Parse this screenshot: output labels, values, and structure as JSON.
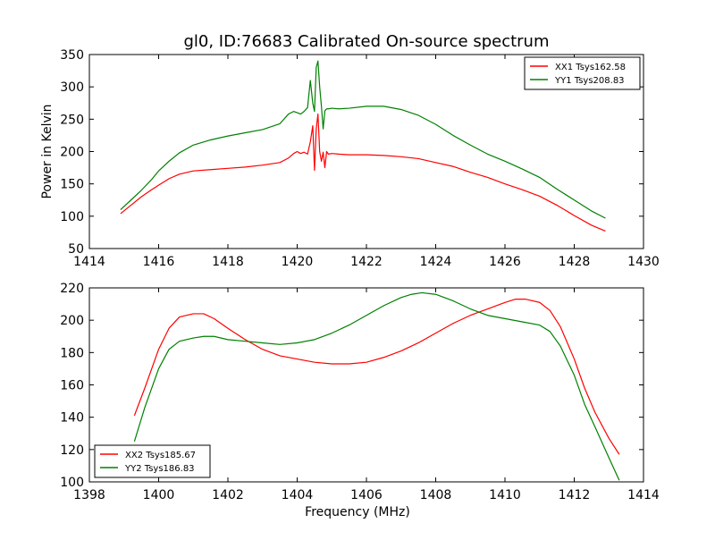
{
  "figure": {
    "title": "gl0, ID:76683 Calibrated On-source spectrum"
  },
  "colors": {
    "red": "#ff0000",
    "green": "#008000",
    "axes": "#000000",
    "background": "#ffffff"
  },
  "chart_data": [
    {
      "type": "line",
      "title": "gl0, ID:76683 Calibrated On-source spectrum",
      "xlabel": "",
      "ylabel": "Power in Kelvin",
      "xlim": [
        1414,
        1430
      ],
      "ylim": [
        50,
        350
      ],
      "xticks": [
        "1414",
        "1416",
        "1418",
        "1420",
        "1422",
        "1424",
        "1426",
        "1428",
        "1430"
      ],
      "yticks": [
        "50",
        "100",
        "150",
        "200",
        "250",
        "300",
        "350"
      ],
      "grid": false,
      "legend_position": "top-right",
      "series": [
        {
          "name": "XX1 Tsys162.58",
          "color": "#ff0000",
          "x": [
            1414.9,
            1415.2,
            1415.5,
            1415.8,
            1416.0,
            1416.3,
            1416.6,
            1417.0,
            1417.5,
            1418.0,
            1418.5,
            1419.0,
            1419.5,
            1419.75,
            1419.9,
            1420.0,
            1420.1,
            1420.2,
            1420.3,
            1420.38,
            1420.45,
            1420.5,
            1420.55,
            1420.6,
            1420.65,
            1420.7,
            1420.75,
            1420.8,
            1420.85,
            1420.9,
            1421.0,
            1421.2,
            1421.5,
            1422.0,
            1422.5,
            1423.0,
            1423.5,
            1424.0,
            1424.5,
            1425.0,
            1425.5,
            1426.0,
            1426.5,
            1427.0,
            1427.5,
            1428.0,
            1428.5,
            1428.9
          ],
          "y": [
            104,
            117,
            130,
            141,
            148,
            158,
            165,
            170,
            172,
            174,
            176,
            179,
            183,
            190,
            197,
            200,
            197,
            199,
            196,
            215,
            240,
            171,
            235,
            258,
            200,
            185,
            199,
            175,
            200,
            196,
            197,
            196,
            195,
            195,
            194,
            192,
            189,
            183,
            177,
            168,
            160,
            150,
            141,
            131,
            117,
            101,
            86,
            77
          ]
        },
        {
          "name": "YY1 Tsys208.83",
          "color": "#008000",
          "x": [
            1414.9,
            1415.2,
            1415.5,
            1415.8,
            1416.0,
            1416.3,
            1416.6,
            1417.0,
            1417.5,
            1418.0,
            1418.5,
            1419.0,
            1419.5,
            1419.75,
            1419.9,
            1420.0,
            1420.1,
            1420.2,
            1420.3,
            1420.38,
            1420.45,
            1420.5,
            1420.55,
            1420.6,
            1420.65,
            1420.7,
            1420.75,
            1420.8,
            1420.85,
            1420.9,
            1421.0,
            1421.2,
            1421.5,
            1422.0,
            1422.5,
            1423.0,
            1423.5,
            1424.0,
            1424.5,
            1425.0,
            1425.5,
            1426.0,
            1426.5,
            1427.0,
            1427.5,
            1428.0,
            1428.5,
            1428.9
          ],
          "y": [
            110,
            125,
            140,
            157,
            170,
            185,
            198,
            210,
            218,
            224,
            229,
            234,
            243,
            258,
            262,
            260,
            258,
            262,
            268,
            310,
            275,
            262,
            330,
            340,
            300,
            270,
            235,
            263,
            266,
            266,
            267,
            266,
            267,
            270,
            270,
            265,
            256,
            242,
            225,
            210,
            196,
            185,
            173,
            160,
            142,
            125,
            108,
            97
          ]
        }
      ]
    },
    {
      "type": "line",
      "title": "",
      "xlabel": "Frequency (MHz)",
      "ylabel": "",
      "xlim": [
        1398,
        1414
      ],
      "ylim": [
        100,
        220
      ],
      "xticks": [
        "1398",
        "1400",
        "1402",
        "1404",
        "1406",
        "1408",
        "1410",
        "1412",
        "1414"
      ],
      "yticks": [
        "100",
        "120",
        "140",
        "160",
        "180",
        "200",
        "220"
      ],
      "grid": false,
      "legend_position": "bottom-left",
      "series": [
        {
          "name": "XX2 Tsys185.67",
          "color": "#ff0000",
          "x": [
            1399.3,
            1399.6,
            1400.0,
            1400.3,
            1400.6,
            1401.0,
            1401.3,
            1401.6,
            1402.0,
            1402.5,
            1403.0,
            1403.5,
            1404.0,
            1404.5,
            1405.0,
            1405.5,
            1406.0,
            1406.5,
            1407.0,
            1407.5,
            1408.0,
            1408.5,
            1409.0,
            1409.5,
            1410.0,
            1410.3,
            1410.6,
            1411.0,
            1411.3,
            1411.6,
            1412.0,
            1412.3,
            1412.6,
            1413.0,
            1413.3
          ],
          "y": [
            141,
            158,
            182,
            195,
            202,
            204,
            204,
            201,
            195,
            188,
            182,
            178,
            176,
            174,
            173,
            173,
            174,
            177,
            181,
            186,
            192,
            198,
            203,
            207,
            211,
            213,
            213,
            211,
            206,
            196,
            176,
            158,
            143,
            127,
            117
          ]
        },
        {
          "name": "YY2 Tsys186.83",
          "color": "#008000",
          "x": [
            1399.3,
            1399.6,
            1400.0,
            1400.3,
            1400.6,
            1401.0,
            1401.3,
            1401.6,
            1402.0,
            1402.5,
            1403.0,
            1403.5,
            1404.0,
            1404.5,
            1405.0,
            1405.5,
            1406.0,
            1406.5,
            1407.0,
            1407.3,
            1407.6,
            1408.0,
            1408.5,
            1409.0,
            1409.5,
            1410.0,
            1410.5,
            1411.0,
            1411.3,
            1411.6,
            1412.0,
            1412.3,
            1412.6,
            1413.0,
            1413.3
          ],
          "y": [
            125,
            146,
            170,
            182,
            187,
            189,
            190,
            190,
            188,
            187,
            186,
            185,
            186,
            188,
            192,
            197,
            203,
            209,
            214,
            216,
            217,
            216,
            212,
            207,
            203,
            201,
            199,
            197,
            193,
            184,
            166,
            148,
            134,
            115,
            101
          ]
        }
      ]
    }
  ]
}
